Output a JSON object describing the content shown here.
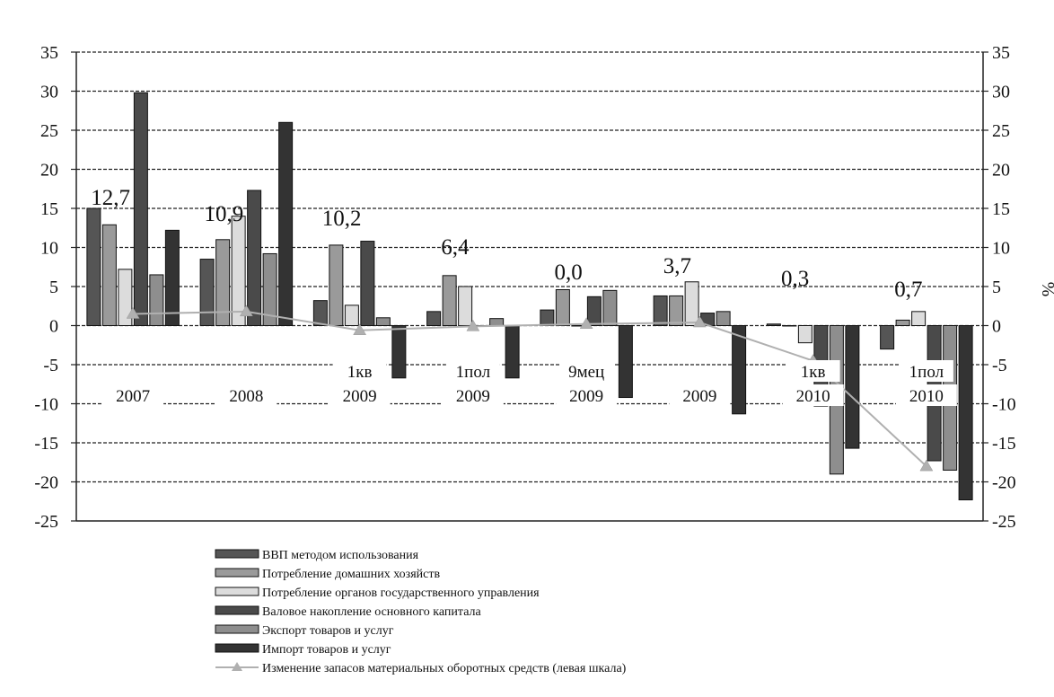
{
  "chart_data": {
    "type": "bar",
    "unit_label": "%",
    "ylim": [
      -25,
      35
    ],
    "yticks": [
      35,
      30,
      25,
      20,
      15,
      10,
      5,
      0,
      -5,
      -10,
      -15,
      -20,
      -25
    ],
    "ytick_labels": [
      "35",
      "30",
      "25",
      "20",
      "15",
      "10",
      "5",
      "0",
      "-5",
      "-10",
      "-15",
      "-20",
      "-25"
    ],
    "grid": true,
    "legend_position": "bottom",
    "categories": [
      {
        "line1": "",
        "line2": "2007"
      },
      {
        "line1": "",
        "line2": "2008"
      },
      {
        "line1": "1кв",
        "line2": "2009"
      },
      {
        "line1": "1пол",
        "line2": "2009"
      },
      {
        "line1": "9мец",
        "line2": "2009"
      },
      {
        "line1": "",
        "line2": "2009"
      },
      {
        "line1": "1кв",
        "line2": "2010"
      },
      {
        "line1": "1пол",
        "line2": "2010"
      }
    ],
    "series": [
      {
        "name": "ВВП методом использования",
        "color": "#555555",
        "values": [
          15.0,
          8.5,
          3.2,
          1.8,
          2.0,
          3.8,
          0.2,
          -3.0
        ]
      },
      {
        "name": "Потребление домашних хозяйств",
        "color": "#9a9a9a",
        "values": [
          12.9,
          11.0,
          10.3,
          6.4,
          4.6,
          3.8,
          0.0,
          0.7
        ]
      },
      {
        "name": "Потребление органов государственного управления",
        "color": "#dcdcdc",
        "values": [
          7.2,
          14.0,
          2.6,
          5.0,
          0.0,
          5.6,
          -2.2,
          1.8
        ]
      },
      {
        "name": "Валовое накопление основного капитала",
        "color": "#4a4a4a",
        "values": [
          29.8,
          17.3,
          10.8,
          0.0,
          3.7,
          1.6,
          -10.3,
          -17.3
        ]
      },
      {
        "name": "Экспорт товаров и услуг",
        "color": "#8e8e8e",
        "values": [
          6.5,
          9.2,
          1.0,
          0.9,
          4.5,
          1.8,
          -19.0,
          -18.5
        ]
      },
      {
        "name": "Импорт товаров и услуг",
        "color": "#333333",
        "values": [
          12.2,
          26.0,
          -6.7,
          -6.7,
          -9.2,
          -11.3,
          -15.7,
          -22.3
        ]
      }
    ],
    "line_series": {
      "name": "Изменение запасов материальных оборотных средств (левая шкала)",
      "color": "#b0b0b0",
      "values": [
        1.5,
        1.8,
        -0.6,
        -0.1,
        0.2,
        0.4,
        -4.5,
        -18.0
      ]
    },
    "annotations": [
      "12,7",
      "10,9",
      "10,2",
      "6,4",
      "0,0",
      "3,7",
      "0,3",
      "0,7"
    ]
  }
}
